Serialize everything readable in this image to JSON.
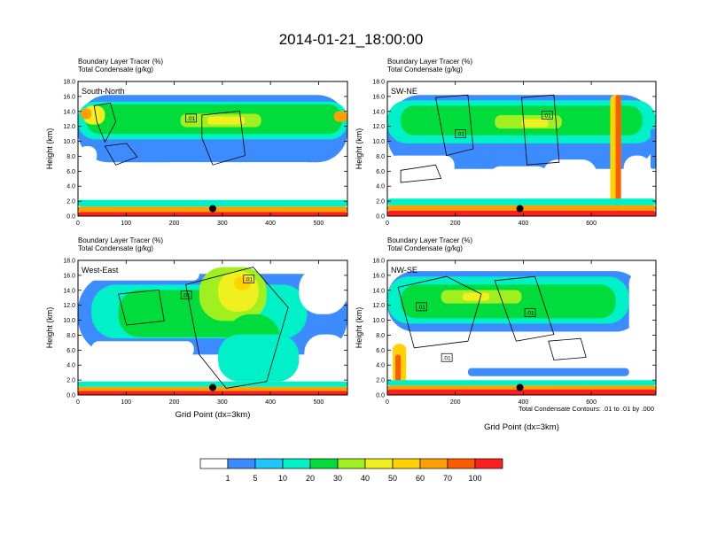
{
  "title": "2014-01-21_18:00:00",
  "chart_data": [
    {
      "type": "heatmap",
      "name": "South-North",
      "panel_label": "South-North",
      "field_label": "Boundary Layer Tracer",
      "field_units": "(%)",
      "contour_label": "Total Condensate",
      "contour_units": "(g/kg)",
      "xlabel": "",
      "ylabel": "Height (km)",
      "xlim": [
        0,
        560
      ],
      "ylim": [
        0,
        18
      ],
      "xticks": [
        "0",
        "100",
        "200",
        "300",
        "400",
        "500"
      ],
      "yticks": [
        "0.0",
        "2.0",
        "4.0",
        "6.0",
        "8.0",
        "10.0",
        "12.0",
        "14.0",
        "16.0",
        "18.0"
      ],
      "marker": {
        "x": 280,
        "y": 1.0
      },
      "contour_tags": [
        {
          "x": 235,
          "y": 13.1,
          "text": ".01"
        }
      ]
    },
    {
      "type": "heatmap",
      "name": "SW-NE",
      "panel_label": "SW-NE",
      "field_label": "Boundary Layer Tracer",
      "field_units": "(%)",
      "contour_label": "Total Condensate",
      "contour_units": "(g/kg)",
      "xlabel": "",
      "ylabel": "Height (km)",
      "xlim": [
        0,
        790
      ],
      "ylim": [
        0,
        18
      ],
      "xticks": [
        "0",
        "200",
        "400",
        "600"
      ],
      "yticks": [
        "0.0",
        "2.0",
        "4.0",
        "6.0",
        "8.0",
        "10.0",
        "12.0",
        "14.0",
        "16.0",
        "18.0"
      ],
      "marker": {
        "x": 390,
        "y": 1.0
      },
      "contour_tags": [
        {
          "x": 215,
          "y": 11.0,
          "text": ".01"
        },
        {
          "x": 470,
          "y": 13.5,
          "text": ".01"
        }
      ]
    },
    {
      "type": "heatmap",
      "name": "West-East",
      "panel_label": "West-East",
      "field_label": "Boundary Layer Tracer",
      "field_units": "(%)",
      "contour_label": "Total Condensate",
      "contour_units": "(g/kg)",
      "xlabel": "Grid Point (dx=3km)",
      "ylabel": "Height (km)",
      "xlim": [
        0,
        560
      ],
      "ylim": [
        0,
        18
      ],
      "xticks": [
        "0",
        "100",
        "200",
        "300",
        "400",
        "500"
      ],
      "yticks": [
        "0.0",
        "2.0",
        "4.0",
        "6.0",
        "8.0",
        "10.0",
        "12.0",
        "14.0",
        "16.0",
        "18.0"
      ],
      "marker": {
        "x": 280,
        "y": 1.0
      },
      "contour_tags": [
        {
          "x": 225,
          "y": 13.4,
          "text": ".01"
        },
        {
          "x": 355,
          "y": 15.5,
          "text": ".01"
        }
      ]
    },
    {
      "type": "heatmap",
      "name": "NW-SE",
      "panel_label": "NW-SE",
      "field_label": "Boundary Layer Tracer",
      "field_units": "(%)",
      "contour_label": "Total Condensate",
      "contour_units": "(g/kg)",
      "xlabel": "Grid Point (dx=3km)",
      "ylabel": "Height (km)",
      "xlim": [
        0,
        790
      ],
      "ylim": [
        0,
        18
      ],
      "xticks": [
        "0",
        "200",
        "400",
        "600"
      ],
      "yticks": [
        "0.0",
        "2.0",
        "4.0",
        "6.0",
        "8.0",
        "10.0",
        "12.0",
        "14.0",
        "16.0",
        "18.0"
      ],
      "marker": {
        "x": 390,
        "y": 1.0
      },
      "contour_tags": [
        {
          "x": 100,
          "y": 11.8,
          "text": ".01"
        },
        {
          "x": 420,
          "y": 11.0,
          "text": ".01"
        },
        {
          "x": 175,
          "y": 5.0,
          "text": ".01"
        }
      ]
    }
  ],
  "contour_note": "Total Condensate Contours: .01 to .01 by .000",
  "colorbar": {
    "labels": [
      "1",
      "5",
      "10",
      "20",
      "30",
      "40",
      "50",
      "60",
      "70",
      "100"
    ],
    "colors": [
      "#ffffff",
      "#3c8cff",
      "#1ec8ff",
      "#00f0c8",
      "#00dc3c",
      "#a0f020",
      "#f0f01e",
      "#ffd200",
      "#ffa000",
      "#ff5a00",
      "#ff1e1e"
    ]
  }
}
